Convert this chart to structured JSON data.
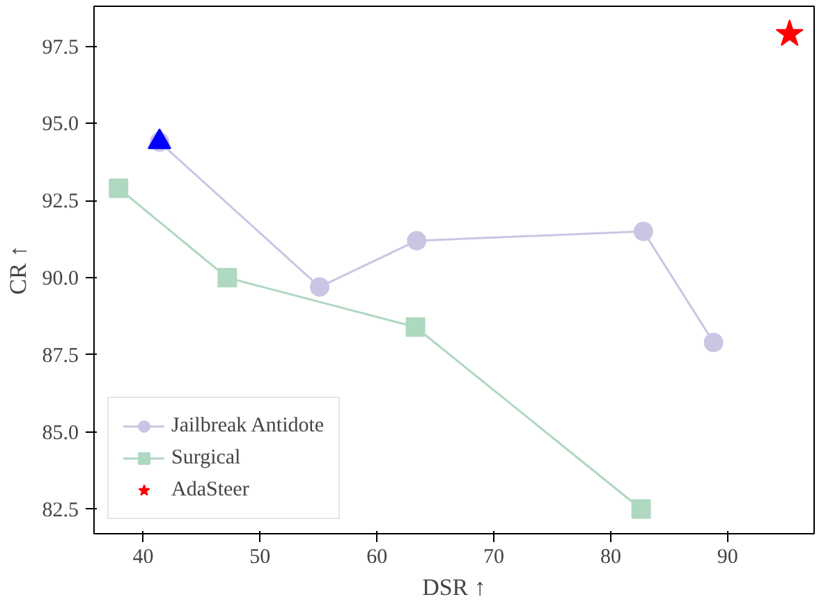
{
  "chart_data": {
    "type": "line",
    "xlabel": "DSR ↑",
    "ylabel": "CR ↑",
    "xlim": [
      35.8,
      97.4
    ],
    "ylim": [
      81.7,
      98.8
    ],
    "xticks": [
      40,
      50,
      60,
      70,
      80,
      90
    ],
    "yticks": [
      82.5,
      {
        "value": 85,
        "label": "85.0"
      },
      87.5,
      {
        "value": 90,
        "label": "90.0"
      },
      92.5,
      {
        "value": 95,
        "label": "95.0"
      },
      97.5
    ],
    "grid": false,
    "legend": "bottom left",
    "series": [
      {
        "name": "Jailbreak Antidote",
        "color": "#cbc5e4",
        "marker": "circle",
        "x": [
          41.4,
          55.1,
          63.4,
          82.8,
          88.8
        ],
        "values": [
          94.4,
          89.7,
          91.2,
          91.5,
          87.9
        ]
      },
      {
        "name": "Surgical",
        "color": "#aed8bf",
        "marker": "square",
        "x": [
          37.9,
          47.2,
          63.3,
          82.6
        ],
        "values": [
          92.9,
          90.0,
          88.4,
          82.5
        ]
      },
      {
        "name": "AdaSteer",
        "type": "scatter",
        "color": "#ff0000",
        "marker": "star",
        "x": [
          95.3
        ],
        "values": [
          97.9
        ]
      },
      {
        "type": "scatter",
        "color": "#0000ff",
        "marker": "triangle",
        "x": [
          41.4
        ],
        "values": [
          94.4
        ]
      }
    ]
  }
}
